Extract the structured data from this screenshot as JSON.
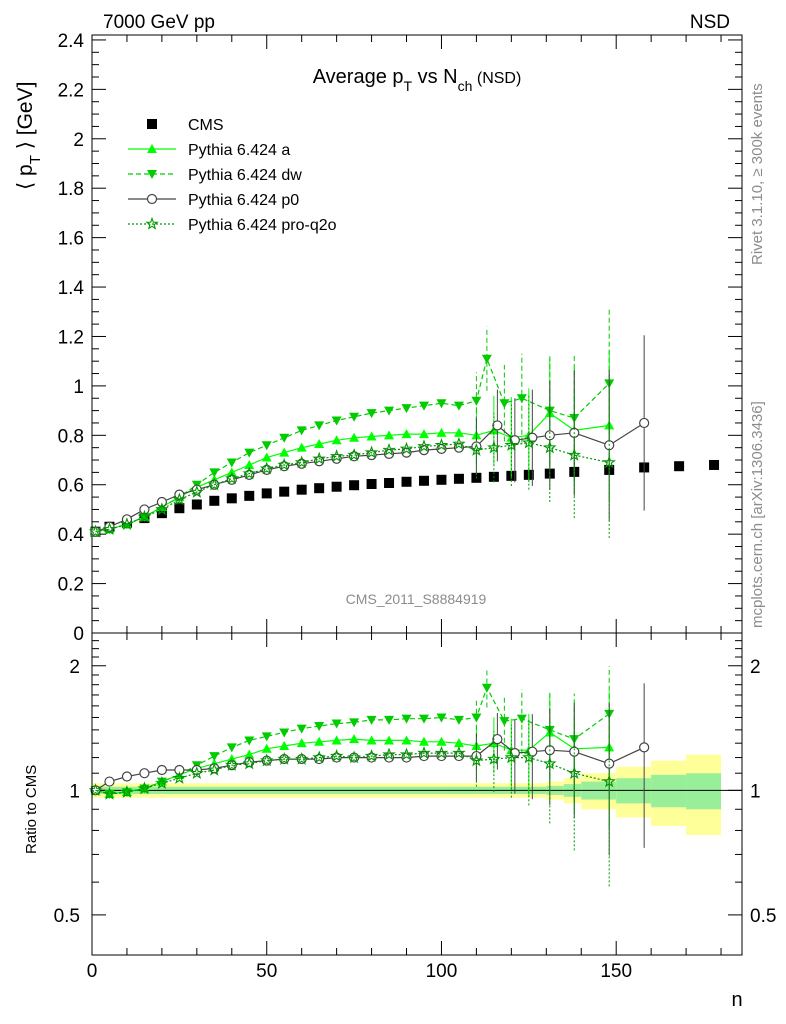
{
  "header": {
    "left": "7000 GeV pp",
    "right": "NSD"
  },
  "side_labels": {
    "rivet": "Rivet 3.1.10, ≥ 300k events",
    "mcplots": "mcplots.cern.ch [arXiv:1306.3436]"
  },
  "watermark": "CMS_2011_S8884919",
  "chart_data": [
    {
      "type": "scatter",
      "title": {
        "main": "Average p",
        "sub1": "T",
        "mid": " vs N",
        "sub2": "ch",
        "tail": " (NSD)"
      },
      "ylabel": {
        "open": "⟨ p",
        "sub": "T",
        "close": " ⟩ [GeV]"
      },
      "xlabel": "n",
      "xlim": [
        0,
        186
      ],
      "ylim": [
        0,
        2.42
      ],
      "yticks": [
        0,
        0.2,
        0.4,
        0.6,
        0.8,
        1,
        1.2,
        1.4,
        1.6,
        1.8,
        2,
        2.2,
        2.4
      ],
      "ytick_labels": [
        "0",
        "0.2",
        "0.4",
        "0.6",
        "0.8",
        "1",
        "1.2",
        "1.4",
        "1.6",
        "1.8",
        "2",
        "2.2",
        "2.4"
      ],
      "legend": {
        "placement": "top-left",
        "entries": [
          "CMS",
          "Pythia 6.424 a",
          "Pythia 6.424 dw",
          "Pythia 6.424 p0",
          "Pythia 6.424 pro-q2o"
        ]
      },
      "series": [
        {
          "name": "CMS",
          "color": "#000000",
          "marker": "square",
          "x": [
            1,
            5,
            10,
            15,
            20,
            25,
            30,
            35,
            40,
            45,
            50,
            55,
            60,
            65,
            70,
            75,
            80,
            85,
            90,
            95,
            100,
            105,
            110,
            115,
            120,
            125,
            131,
            138,
            148,
            158,
            168,
            178
          ],
          "y": [
            0.41,
            0.43,
            0.445,
            0.465,
            0.485,
            0.505,
            0.52,
            0.535,
            0.545,
            0.555,
            0.565,
            0.572,
            0.58,
            0.586,
            0.592,
            0.598,
            0.603,
            0.607,
            0.612,
            0.616,
            0.62,
            0.624,
            0.628,
            0.632,
            0.636,
            0.64,
            0.645,
            0.652,
            0.66,
            0.67,
            0.675,
            0.68
          ]
        },
        {
          "name": "Pythia 6.424 a",
          "color": "#00ff00",
          "marker": "triangle-up",
          "x": [
            1,
            5,
            10,
            15,
            20,
            25,
            30,
            35,
            40,
            45,
            50,
            55,
            60,
            65,
            70,
            75,
            80,
            85,
            90,
            95,
            100,
            105,
            110,
            115,
            120,
            125,
            131,
            138,
            148
          ],
          "y": [
            0.41,
            0.42,
            0.44,
            0.47,
            0.51,
            0.55,
            0.59,
            0.62,
            0.65,
            0.68,
            0.71,
            0.73,
            0.75,
            0.765,
            0.78,
            0.79,
            0.795,
            0.8,
            0.805,
            0.805,
            0.81,
            0.81,
            0.8,
            0.82,
            0.79,
            0.8,
            0.89,
            0.82,
            0.84
          ]
        },
        {
          "name": "Pythia 6.424 dw",
          "color": "#00cc00",
          "marker": "triangle-down",
          "x": [
            1,
            5,
            10,
            15,
            20,
            25,
            30,
            35,
            40,
            45,
            50,
            55,
            60,
            65,
            70,
            75,
            80,
            85,
            90,
            95,
            100,
            105,
            110,
            113,
            118,
            123,
            131,
            138,
            148
          ],
          "y": [
            0.41,
            0.42,
            0.44,
            0.47,
            0.51,
            0.55,
            0.6,
            0.65,
            0.69,
            0.73,
            0.76,
            0.79,
            0.82,
            0.84,
            0.86,
            0.875,
            0.89,
            0.9,
            0.91,
            0.92,
            0.93,
            0.92,
            0.94,
            1.11,
            0.93,
            0.95,
            0.9,
            0.87,
            1.01
          ]
        },
        {
          "name": "Pythia 6.424 p0",
          "color": "#444444",
          "marker": "circle-open",
          "x": [
            1,
            5,
            10,
            15,
            20,
            25,
            30,
            35,
            40,
            45,
            50,
            55,
            60,
            65,
            70,
            75,
            80,
            85,
            90,
            95,
            100,
            105,
            110,
            116,
            121,
            126,
            131,
            138,
            148,
            158
          ],
          "y": [
            0.41,
            0.43,
            0.46,
            0.5,
            0.53,
            0.56,
            0.58,
            0.6,
            0.62,
            0.64,
            0.66,
            0.675,
            0.685,
            0.695,
            0.705,
            0.715,
            0.72,
            0.725,
            0.73,
            0.74,
            0.745,
            0.75,
            0.755,
            0.84,
            0.78,
            0.79,
            0.8,
            0.81,
            0.76,
            0.85
          ]
        },
        {
          "name": "Pythia 6.424 pro-q2o",
          "color": "#009900",
          "marker": "star",
          "x": [
            1,
            5,
            10,
            15,
            20,
            25,
            30,
            35,
            40,
            45,
            50,
            55,
            60,
            65,
            70,
            75,
            80,
            85,
            90,
            95,
            100,
            105,
            110,
            115,
            120,
            125,
            131,
            138,
            148
          ],
          "y": [
            0.41,
            0.42,
            0.44,
            0.47,
            0.5,
            0.54,
            0.57,
            0.6,
            0.625,
            0.645,
            0.665,
            0.68,
            0.69,
            0.705,
            0.715,
            0.72,
            0.73,
            0.74,
            0.745,
            0.755,
            0.76,
            0.765,
            0.74,
            0.75,
            0.76,
            0.77,
            0.75,
            0.72,
            0.69
          ]
        }
      ]
    },
    {
      "type": "scatter",
      "ylabel": "Ratio to CMS",
      "xlabel": "n",
      "xlim": [
        0,
        186
      ],
      "ylim": [
        0.4,
        2.4
      ],
      "yscale": "log",
      "yticks": [
        0.5,
        1,
        2
      ],
      "ytick_labels": [
        "0.5",
        "1",
        "2"
      ],
      "xticks": [
        0,
        50,
        100,
        150
      ],
      "xtick_labels": [
        "0",
        "50",
        "100",
        "150"
      ],
      "reference_line": 1,
      "band_inner_halfwidth": [
        0.02,
        0.02,
        0.02,
        0.02,
        0.02,
        0.025,
        0.035,
        0.05,
        0.07,
        0.09,
        0.1
      ],
      "band_outer_halfwidth": [
        0.04,
        0.04,
        0.04,
        0.04,
        0.04,
        0.05,
        0.07,
        0.1,
        0.14,
        0.18,
        0.22
      ],
      "band_x_edges": [
        0,
        100,
        110,
        120,
        125,
        130,
        135,
        140,
        150,
        160,
        170,
        180
      ],
      "series": [
        {
          "name": "Pythia 6.424 a",
          "color": "#00ff00",
          "marker": "triangle-up",
          "x": [
            1,
            5,
            10,
            15,
            20,
            25,
            30,
            35,
            40,
            45,
            50,
            55,
            60,
            65,
            70,
            75,
            80,
            85,
            90,
            95,
            100,
            105,
            110,
            115,
            120,
            125,
            131,
            138,
            148
          ],
          "y": [
            1.0,
            0.98,
            0.99,
            1.01,
            1.05,
            1.09,
            1.13,
            1.16,
            1.19,
            1.22,
            1.26,
            1.28,
            1.3,
            1.31,
            1.32,
            1.33,
            1.32,
            1.32,
            1.32,
            1.31,
            1.31,
            1.3,
            1.28,
            1.3,
            1.25,
            1.25,
            1.38,
            1.26,
            1.27
          ]
        },
        {
          "name": "Pythia 6.424 dw",
          "color": "#00cc00",
          "marker": "triangle-down",
          "x": [
            1,
            5,
            10,
            15,
            20,
            25,
            30,
            35,
            40,
            45,
            50,
            55,
            60,
            65,
            70,
            75,
            80,
            85,
            90,
            95,
            100,
            105,
            110,
            113,
            118,
            123,
            131,
            138,
            148
          ],
          "y": [
            1.0,
            0.98,
            0.99,
            1.01,
            1.05,
            1.09,
            1.15,
            1.21,
            1.27,
            1.32,
            1.35,
            1.38,
            1.41,
            1.43,
            1.45,
            1.46,
            1.48,
            1.48,
            1.49,
            1.49,
            1.5,
            1.48,
            1.5,
            1.77,
            1.47,
            1.49,
            1.4,
            1.33,
            1.53
          ]
        },
        {
          "name": "Pythia 6.424 p0",
          "color": "#444444",
          "marker": "circle-open",
          "x": [
            1,
            5,
            10,
            15,
            20,
            25,
            30,
            35,
            40,
            45,
            50,
            55,
            60,
            65,
            70,
            75,
            80,
            85,
            90,
            95,
            100,
            105,
            110,
            116,
            121,
            126,
            131,
            138,
            148,
            158
          ],
          "y": [
            1.0,
            1.05,
            1.08,
            1.1,
            1.12,
            1.12,
            1.12,
            1.13,
            1.15,
            1.17,
            1.18,
            1.19,
            1.19,
            1.19,
            1.2,
            1.2,
            1.2,
            1.2,
            1.2,
            1.21,
            1.21,
            1.21,
            1.21,
            1.33,
            1.23,
            1.24,
            1.25,
            1.24,
            1.16,
            1.27
          ]
        },
        {
          "name": "Pythia 6.424 pro-q2o",
          "color": "#009900",
          "marker": "star",
          "x": [
            1,
            5,
            10,
            15,
            20,
            25,
            30,
            35,
            40,
            45,
            50,
            55,
            60,
            65,
            70,
            75,
            80,
            85,
            90,
            95,
            100,
            105,
            110,
            115,
            120,
            125,
            131,
            138,
            148
          ],
          "y": [
            1.0,
            0.98,
            0.99,
            1.01,
            1.04,
            1.07,
            1.1,
            1.12,
            1.15,
            1.16,
            1.18,
            1.19,
            1.19,
            1.2,
            1.21,
            1.2,
            1.21,
            1.22,
            1.22,
            1.23,
            1.23,
            1.23,
            1.18,
            1.19,
            1.2,
            1.2,
            1.16,
            1.1,
            1.05
          ]
        }
      ]
    }
  ]
}
